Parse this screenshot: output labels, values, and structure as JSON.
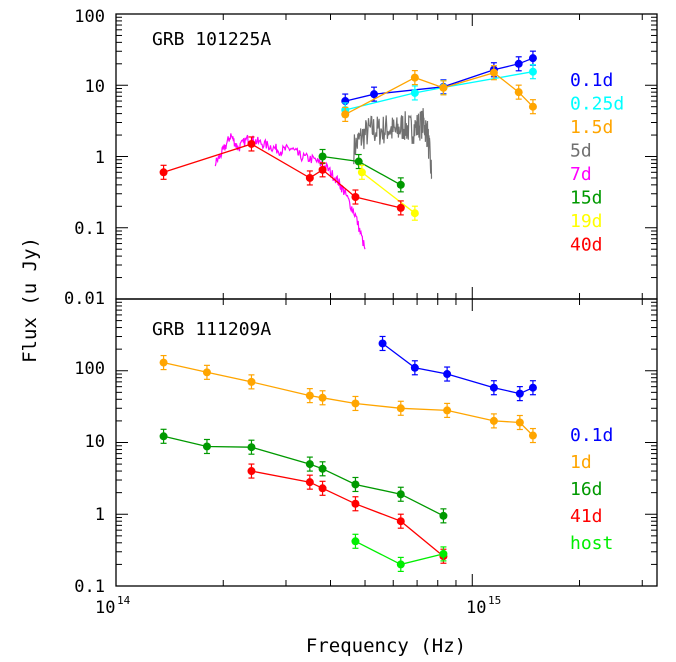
{
  "x_axis": {
    "label": "Frequency (Hz)",
    "ticks": [
      {
        "value": 100000000000000.0,
        "mantissa": "10",
        "exponent": "14"
      },
      {
        "value": 1000000000000000.0,
        "mantissa": "10",
        "exponent": "15"
      }
    ]
  },
  "y_axis": {
    "label": "Flux (u Jy)"
  },
  "chart_data": [
    {
      "type": "line",
      "title": "GRB 101225A",
      "xscale": "log",
      "yscale": "log",
      "xlim": [
        100000000000000.0,
        3300000000000000.0
      ],
      "ylim": [
        0.01,
        100
      ],
      "yticks": [
        {
          "value": 0.01,
          "label": "0.01"
        },
        {
          "value": 0.1,
          "label": "0.1"
        },
        {
          "value": 1,
          "label": "1"
        },
        {
          "value": 10,
          "label": "10"
        },
        {
          "value": 100,
          "label": "100"
        }
      ],
      "legend_position": "right",
      "series": [
        {
          "name": "0.1d",
          "color": "#0000ff",
          "kind": "points",
          "x": [
            440000000000000.0,
            530000000000000.0,
            830000000000000.0,
            1150000000000000.0,
            1350000000000000.0,
            1480000000000000.0
          ],
          "y": [
            6.0,
            7.5,
            9.5,
            16.5,
            20.0,
            24.0
          ]
        },
        {
          "name": "0.25d",
          "color": "#00ffff",
          "kind": "points",
          "x": [
            440000000000000.0,
            690000000000000.0,
            830000000000000.0,
            1480000000000000.0
          ],
          "y": [
            4.5,
            7.8,
            9.3,
            15.5
          ]
        },
        {
          "name": "1.5d",
          "color": "#ffa500",
          "kind": "points",
          "x": [
            440000000000000.0,
            690000000000000.0,
            830000000000000.0,
            1150000000000000.0,
            1350000000000000.0,
            1480000000000000.0
          ],
          "y": [
            3.9,
            12.8,
            9.2,
            15.0,
            8.0,
            5.0
          ]
        },
        {
          "name": "5d",
          "color": "#707070",
          "kind": "spectrum",
          "x": [
            465000000000000.0,
            490000000000000.0,
            520000000000000.0,
            550000000000000.0,
            580000000000000.0,
            610000000000000.0,
            640000000000000.0,
            670000000000000.0,
            700000000000000.0,
            730000000000000.0,
            750000000000000.0,
            770000000000000.0
          ],
          "y": [
            1.3,
            1.9,
            2.4,
            2.3,
            2.5,
            2.2,
            2.7,
            2.4,
            2.6,
            3.0,
            2.0,
            0.5
          ]
        },
        {
          "name": "7d",
          "color": "#ff00ff",
          "kind": "spectrum",
          "x": [
            190000000000000.0,
            200000000000000.0,
            210000000000000.0,
            220000000000000.0,
            235000000000000.0,
            250000000000000.0,
            270000000000000.0,
            290000000000000.0,
            310000000000000.0,
            330000000000000.0,
            360000000000000.0,
            390000000000000.0,
            420000000000000.0,
            440000000000000.0,
            470000000000000.0,
            500000000000000.0
          ],
          "y": [
            0.8,
            1.2,
            2.0,
            1.3,
            1.8,
            1.6,
            1.4,
            1.2,
            1.3,
            1.0,
            0.9,
            0.7,
            0.45,
            0.3,
            0.15,
            0.05
          ]
        },
        {
          "name": "15d",
          "color": "#009900",
          "kind": "points",
          "x": [
            380000000000000.0,
            480000000000000.0,
            630000000000000.0
          ],
          "y": [
            1.0,
            0.85,
            0.4
          ]
        },
        {
          "name": "19d",
          "color": "#ffff00",
          "kind": "points",
          "x": [
            490000000000000.0,
            690000000000000.0
          ],
          "y": [
            0.6,
            0.16
          ]
        },
        {
          "name": "40d",
          "color": "#ff0000",
          "kind": "points",
          "x": [
            136000000000000.0,
            240000000000000.0,
            350000000000000.0,
            380000000000000.0,
            470000000000000.0,
            630000000000000.0
          ],
          "y": [
            0.6,
            1.5,
            0.5,
            0.65,
            0.27,
            0.19
          ]
        }
      ]
    },
    {
      "type": "line",
      "title": "GRB 111209A",
      "xscale": "log",
      "yscale": "log",
      "xlim": [
        100000000000000.0,
        3300000000000000.0
      ],
      "ylim": [
        0.1,
        1000
      ],
      "yticks": [
        {
          "value": 0.1,
          "label": "0.1"
        },
        {
          "value": 1,
          "label": "1"
        },
        {
          "value": 10,
          "label": "10"
        },
        {
          "value": 100,
          "label": "100"
        }
      ],
      "legend_position": "right",
      "series": [
        {
          "name": "0.1d",
          "color": "#0000ff",
          "kind": "points",
          "x": [
            560000000000000.0,
            690000000000000.0,
            850000000000000.0,
            1150000000000000.0,
            1360000000000000.0,
            1480000000000000.0
          ],
          "y": [
            240,
            110,
            90,
            58,
            48,
            58
          ]
        },
        {
          "name": "1d",
          "color": "#ffa500",
          "kind": "points",
          "x": [
            136000000000000.0,
            180000000000000.0,
            240000000000000.0,
            350000000000000.0,
            380000000000000.0,
            470000000000000.0,
            630000000000000.0,
            850000000000000.0,
            1150000000000000.0,
            1360000000000000.0,
            1480000000000000.0
          ],
          "y": [
            130,
            95,
            70,
            45,
            42,
            35,
            30,
            28,
            20,
            19,
            12.5
          ]
        },
        {
          "name": "16d",
          "color": "#009900",
          "kind": "points",
          "x": [
            136000000000000.0,
            180000000000000.0,
            240000000000000.0,
            350000000000000.0,
            380000000000000.0,
            470000000000000.0,
            630000000000000.0,
            830000000000000.0
          ],
          "y": [
            12.2,
            8.8,
            8.6,
            5.0,
            4.3,
            2.6,
            1.9,
            0.95
          ]
        },
        {
          "name": "41d",
          "color": "#ff0000",
          "kind": "points",
          "x": [
            240000000000000.0,
            350000000000000.0,
            380000000000000.0,
            470000000000000.0,
            630000000000000.0,
            830000000000000.0
          ],
          "y": [
            4.0,
            2.8,
            2.3,
            1.4,
            0.8,
            0.26
          ]
        },
        {
          "name": "host",
          "color": "#00ee00",
          "kind": "points",
          "x": [
            470000000000000.0,
            630000000000000.0,
            830000000000000.0
          ],
          "y": [
            0.42,
            0.2,
            0.28
          ]
        }
      ]
    }
  ]
}
